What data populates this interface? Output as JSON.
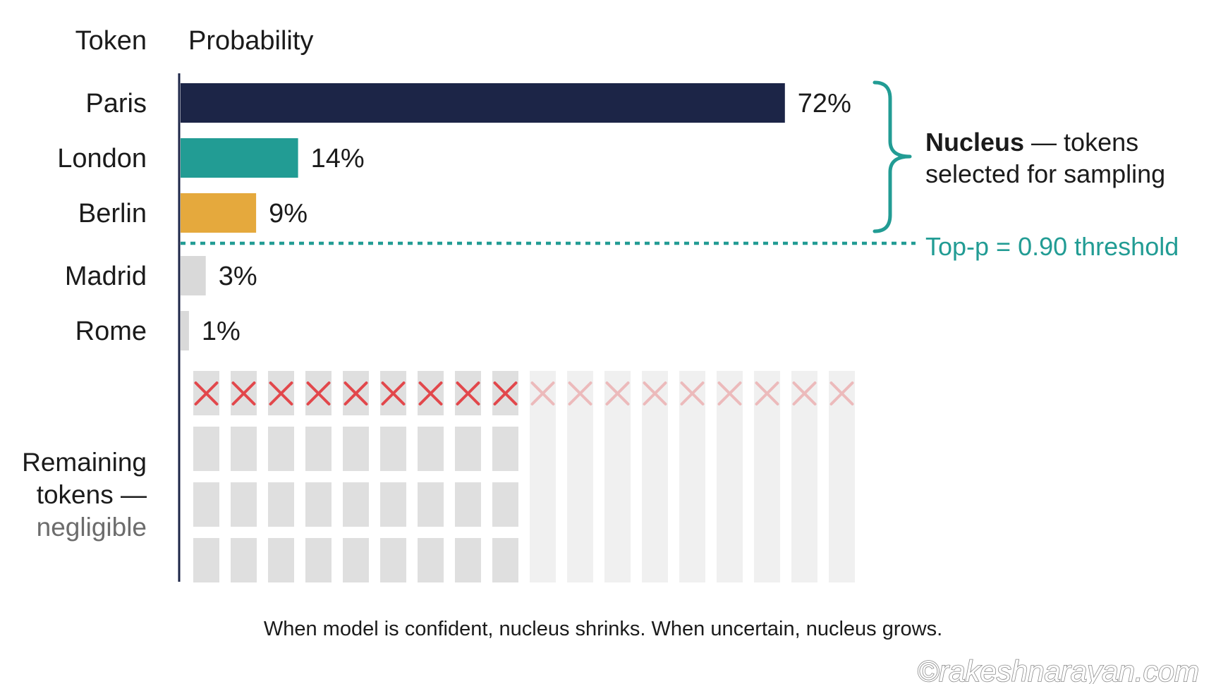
{
  "chart_data": {
    "type": "bar",
    "orientation": "horizontal",
    "column_headers": {
      "token": "Token",
      "probability": "Probability"
    },
    "categories": [
      "Paris",
      "London",
      "Berlin",
      "Madrid",
      "Rome"
    ],
    "values": [
      72,
      14,
      9,
      3,
      1
    ],
    "value_labels": [
      "72%",
      "14%",
      "9%",
      "3%",
      "1%"
    ],
    "bar_colors": [
      "#1c2547",
      "#229c94",
      "#e5a93d",
      "#d9d9d9",
      "#d9d9d9"
    ],
    "threshold": {
      "value": 0.9,
      "label": "Top-p = 0.90 threshold",
      "color": "#229c94"
    },
    "nucleus_annotation": {
      "bold": "Nucleus",
      "rest_line1": " — tokens",
      "line2": "selected for sampling"
    },
    "remaining": {
      "label_line1": "Remaining",
      "label_line2": "tokens —",
      "label_line3": "negligible",
      "excluded_marker_color": "#e2474b"
    },
    "footnote": "When model is confident, nucleus shrinks. When uncertain, nucleus grows.",
    "xlim": [
      0,
      100
    ],
    "grid": false,
    "legend": "none"
  },
  "watermark": "©rakeshnarayan.com"
}
